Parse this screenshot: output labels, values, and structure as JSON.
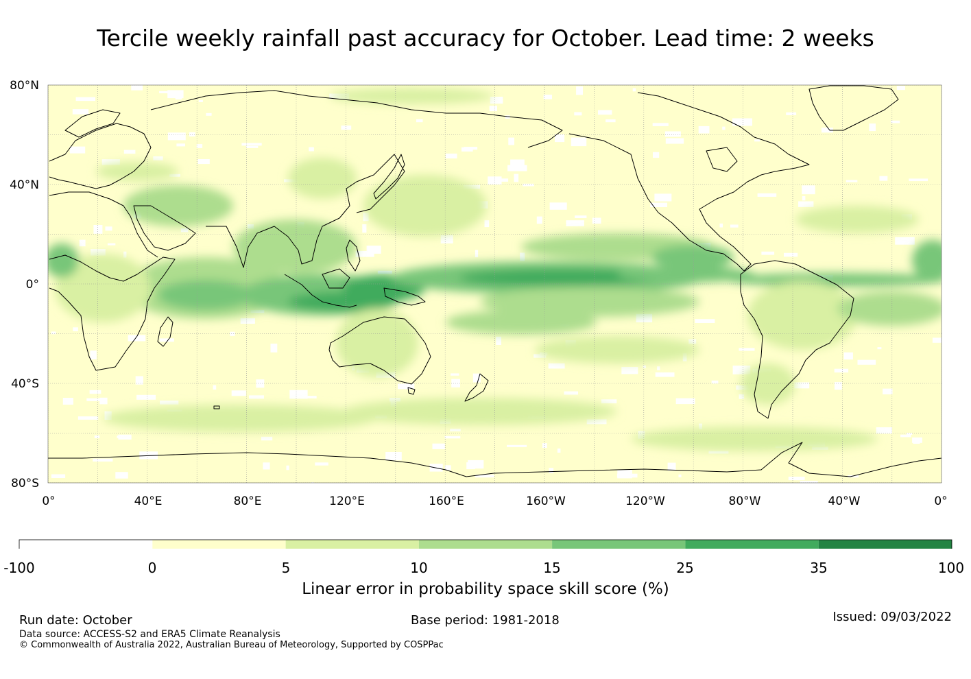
{
  "title": "Tercile weekly rainfall past accuracy for October. Lead time: 2 weeks",
  "map": {
    "lat_labels": [
      "80°N",
      "40°N",
      "0°",
      "40°S",
      "80°S"
    ],
    "lon_labels": [
      "0°",
      "40°E",
      "80°E",
      "120°E",
      "160°E",
      "160°W",
      "120°W",
      "80°W",
      "40°W",
      "0°"
    ]
  },
  "colorbar": {
    "ticks": [
      "-100",
      "0",
      "5",
      "10",
      "15",
      "25",
      "35",
      "100"
    ],
    "colors": [
      "#ffffff",
      "#ffffcc",
      "#d9f0a3",
      "#addd8e",
      "#78c679",
      "#41ab5d",
      "#238443"
    ],
    "title": "Linear error in probability space skill score (%)"
  },
  "footer": {
    "run_date": "Run date: October",
    "base_period": "Base period: 1981-2018",
    "issued": "Issued: 09/03/2022",
    "data_source": "Data source: ACCESS-S2 and ERA5 Climate Reanalysis",
    "copyright": "© Commonwealth of Australia 2022, Australian Bureau of Meteorology, Supported by COSPPac"
  }
}
